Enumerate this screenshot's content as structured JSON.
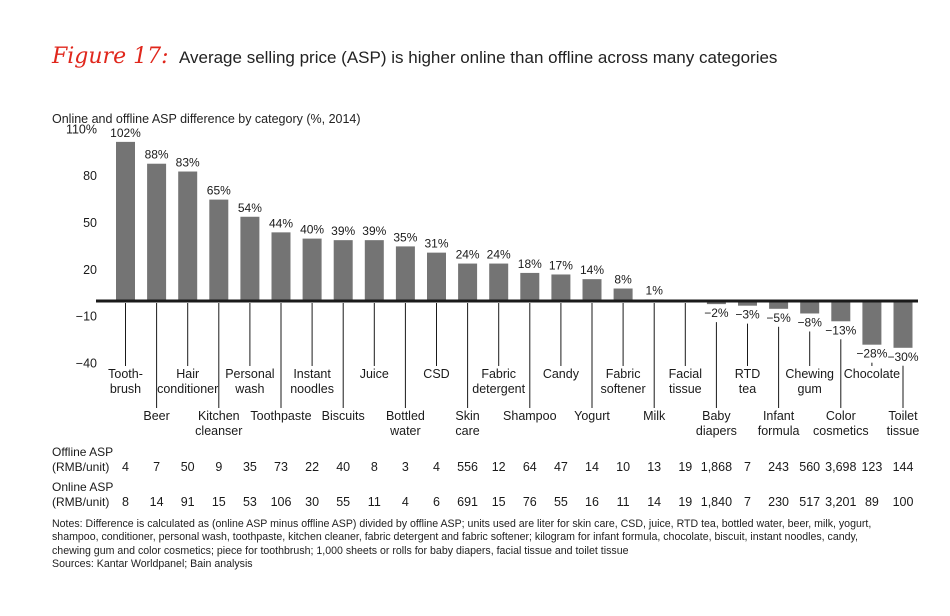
{
  "figure": {
    "label": "Figure 17:",
    "title": "Average selling price (ASP) is higher online than offline across many categories"
  },
  "colors": {
    "bar": "#747474",
    "accent": "#e0271c",
    "axis": "#1a1a1a"
  },
  "chart_data": {
    "type": "bar",
    "title": "Online and offline ASP difference by category (%, 2014)",
    "ylim": [
      -40,
      110
    ],
    "yticks": [
      {
        "value": 110,
        "label": "110%"
      },
      {
        "value": 80,
        "label": "80"
      },
      {
        "value": 50,
        "label": "50"
      },
      {
        "value": 20,
        "label": "20"
      },
      {
        "value": -10,
        "label": "−10"
      },
      {
        "value": -40,
        "label": "−40"
      }
    ],
    "grid": false,
    "categories": [
      {
        "lines": [
          "Tooth-",
          "brush"
        ],
        "value": 102,
        "label": "102%",
        "offline": "4",
        "online": "8"
      },
      {
        "lines": [
          "Beer"
        ],
        "value": 88,
        "label": "88%",
        "offline": "7",
        "online": "14"
      },
      {
        "lines": [
          "Hair",
          "conditioner"
        ],
        "value": 83,
        "label": "83%",
        "offline": "50",
        "online": "91"
      },
      {
        "lines": [
          "Kitchen",
          "cleanser"
        ],
        "value": 65,
        "label": "65%",
        "offline": "9",
        "online": "15"
      },
      {
        "lines": [
          "Personal",
          "wash"
        ],
        "value": 54,
        "label": "54%",
        "offline": "35",
        "online": "53"
      },
      {
        "lines": [
          "Toothpaste"
        ],
        "value": 44,
        "label": "44%",
        "offline": "73",
        "online": "106"
      },
      {
        "lines": [
          "Instant",
          "noodles"
        ],
        "value": 40,
        "label": "40%",
        "offline": "22",
        "online": "30"
      },
      {
        "lines": [
          "Biscuits"
        ],
        "value": 39,
        "label": "39%",
        "offline": "40",
        "online": "55"
      },
      {
        "lines": [
          "Juice"
        ],
        "value": 39,
        "label": "39%",
        "offline": "8",
        "online": "11"
      },
      {
        "lines": [
          "Bottled",
          "water"
        ],
        "value": 35,
        "label": "35%",
        "offline": "3",
        "online": "4"
      },
      {
        "lines": [
          "CSD"
        ],
        "value": 31,
        "label": "31%",
        "offline": "4",
        "online": "6"
      },
      {
        "lines": [
          "Skin",
          "care"
        ],
        "value": 24,
        "label": "24%",
        "offline": "556",
        "online": "691"
      },
      {
        "lines": [
          "Fabric",
          "detergent"
        ],
        "value": 24,
        "label": "24%",
        "offline": "12",
        "online": "15"
      },
      {
        "lines": [
          "Shampoo"
        ],
        "value": 18,
        "label": "18%",
        "offline": "64",
        "online": "76"
      },
      {
        "lines": [
          "Candy"
        ],
        "value": 17,
        "label": "17%",
        "offline": "47",
        "online": "55"
      },
      {
        "lines": [
          "Yogurt"
        ],
        "value": 14,
        "label": "14%",
        "offline": "14",
        "online": "16"
      },
      {
        "lines": [
          "Fabric",
          "softener"
        ],
        "value": 8,
        "label": "8%",
        "offline": "10",
        "online": "11"
      },
      {
        "lines": [
          "Milk"
        ],
        "value": 1,
        "label": "1%",
        "offline": "13",
        "online": "14"
      },
      {
        "lines": [
          "Facial",
          "tissue"
        ],
        "value": 0,
        "label": "",
        "offline": "19",
        "online": "19"
      },
      {
        "lines": [
          "Baby",
          "diapers"
        ],
        "value": -2,
        "label": "−2%",
        "offline": "1,868",
        "online": "1,840"
      },
      {
        "lines": [
          "RTD",
          "tea"
        ],
        "value": -3,
        "label": "−3%",
        "offline": "7",
        "online": "7"
      },
      {
        "lines": [
          "Infant",
          "formula"
        ],
        "value": -5,
        "label": "−5%",
        "offline": "243",
        "online": "230"
      },
      {
        "lines": [
          "Chewing",
          "gum"
        ],
        "value": -8,
        "label": "−8%",
        "offline": "560",
        "online": "517"
      },
      {
        "lines": [
          "Color",
          "cosmetics"
        ],
        "value": -13,
        "label": "−13%",
        "offline": "3,698",
        "online": "3,201"
      },
      {
        "lines": [
          "Chocolate"
        ],
        "value": -28,
        "label": "−28%",
        "offline": "123",
        "online": "89"
      },
      {
        "lines": [
          "Toilet",
          "tissue"
        ],
        "value": -30,
        "label": "−30%",
        "offline": "144",
        "online": "100"
      }
    ],
    "table_rows": [
      {
        "lines": [
          "Offline ASP",
          "(RMB/unit)"
        ],
        "key": "offline"
      },
      {
        "lines": [
          "Online ASP",
          "(RMB/unit)"
        ],
        "key": "online"
      }
    ]
  },
  "notes": [
    "Notes: Difference is calculated as (online ASP minus offline ASP) divided by offline ASP; units used are liter for skin care, CSD, juice, RTD tea, bottled water, beer, milk, yogurt,",
    "shampoo, conditioner, personal wash, toothpaste, kitchen cleaner, fabric detergent and fabric softener; kilogram for infant formula, chocolate, biscuit, instant noodles, candy,",
    "chewing gum and color cosmetics; piece for toothbrush; 1,000 sheets or rolls for baby diapers, facial tissue and toilet tissue",
    "Sources: Kantar Worldpanel; Bain analysis"
  ]
}
